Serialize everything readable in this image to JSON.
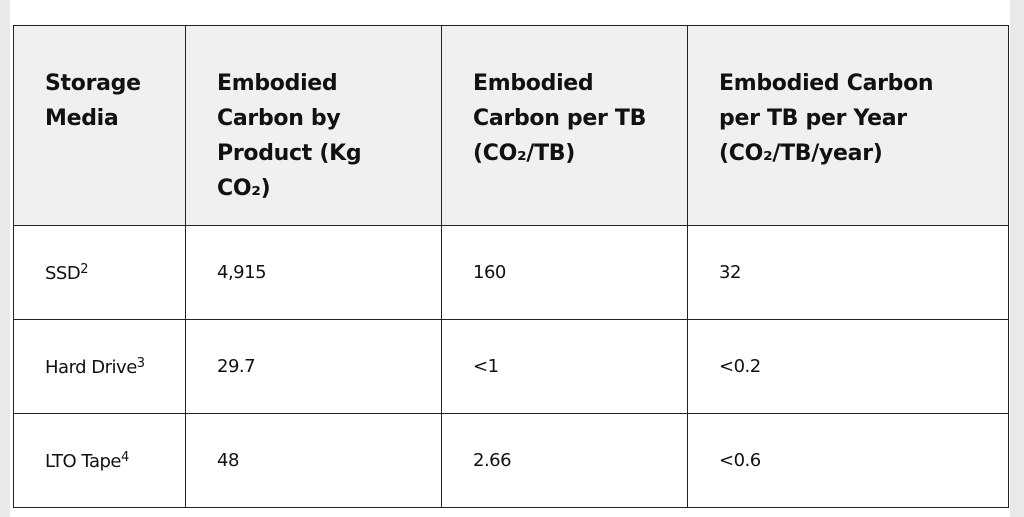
{
  "table": {
    "header": [
      "Storage Media",
      "Embodied Carbon by Product (Kg CO₂)",
      "Embodied Carbon per TB (CO₂/TB)",
      "Embodied Carbon per TB per Year (CO₂/TB/year)"
    ],
    "rows": [
      [
        {
          "label": "SSD",
          "note": "2"
        },
        "4,915",
        "160",
        "32"
      ],
      [
        {
          "label": "Hard Drive",
          "note": "3"
        },
        "29.7",
        "<1",
        "<0.2"
      ],
      [
        {
          "label": "LTO Tape",
          "note": "4"
        },
        "48",
        "2.66",
        "<0.6"
      ]
    ]
  }
}
